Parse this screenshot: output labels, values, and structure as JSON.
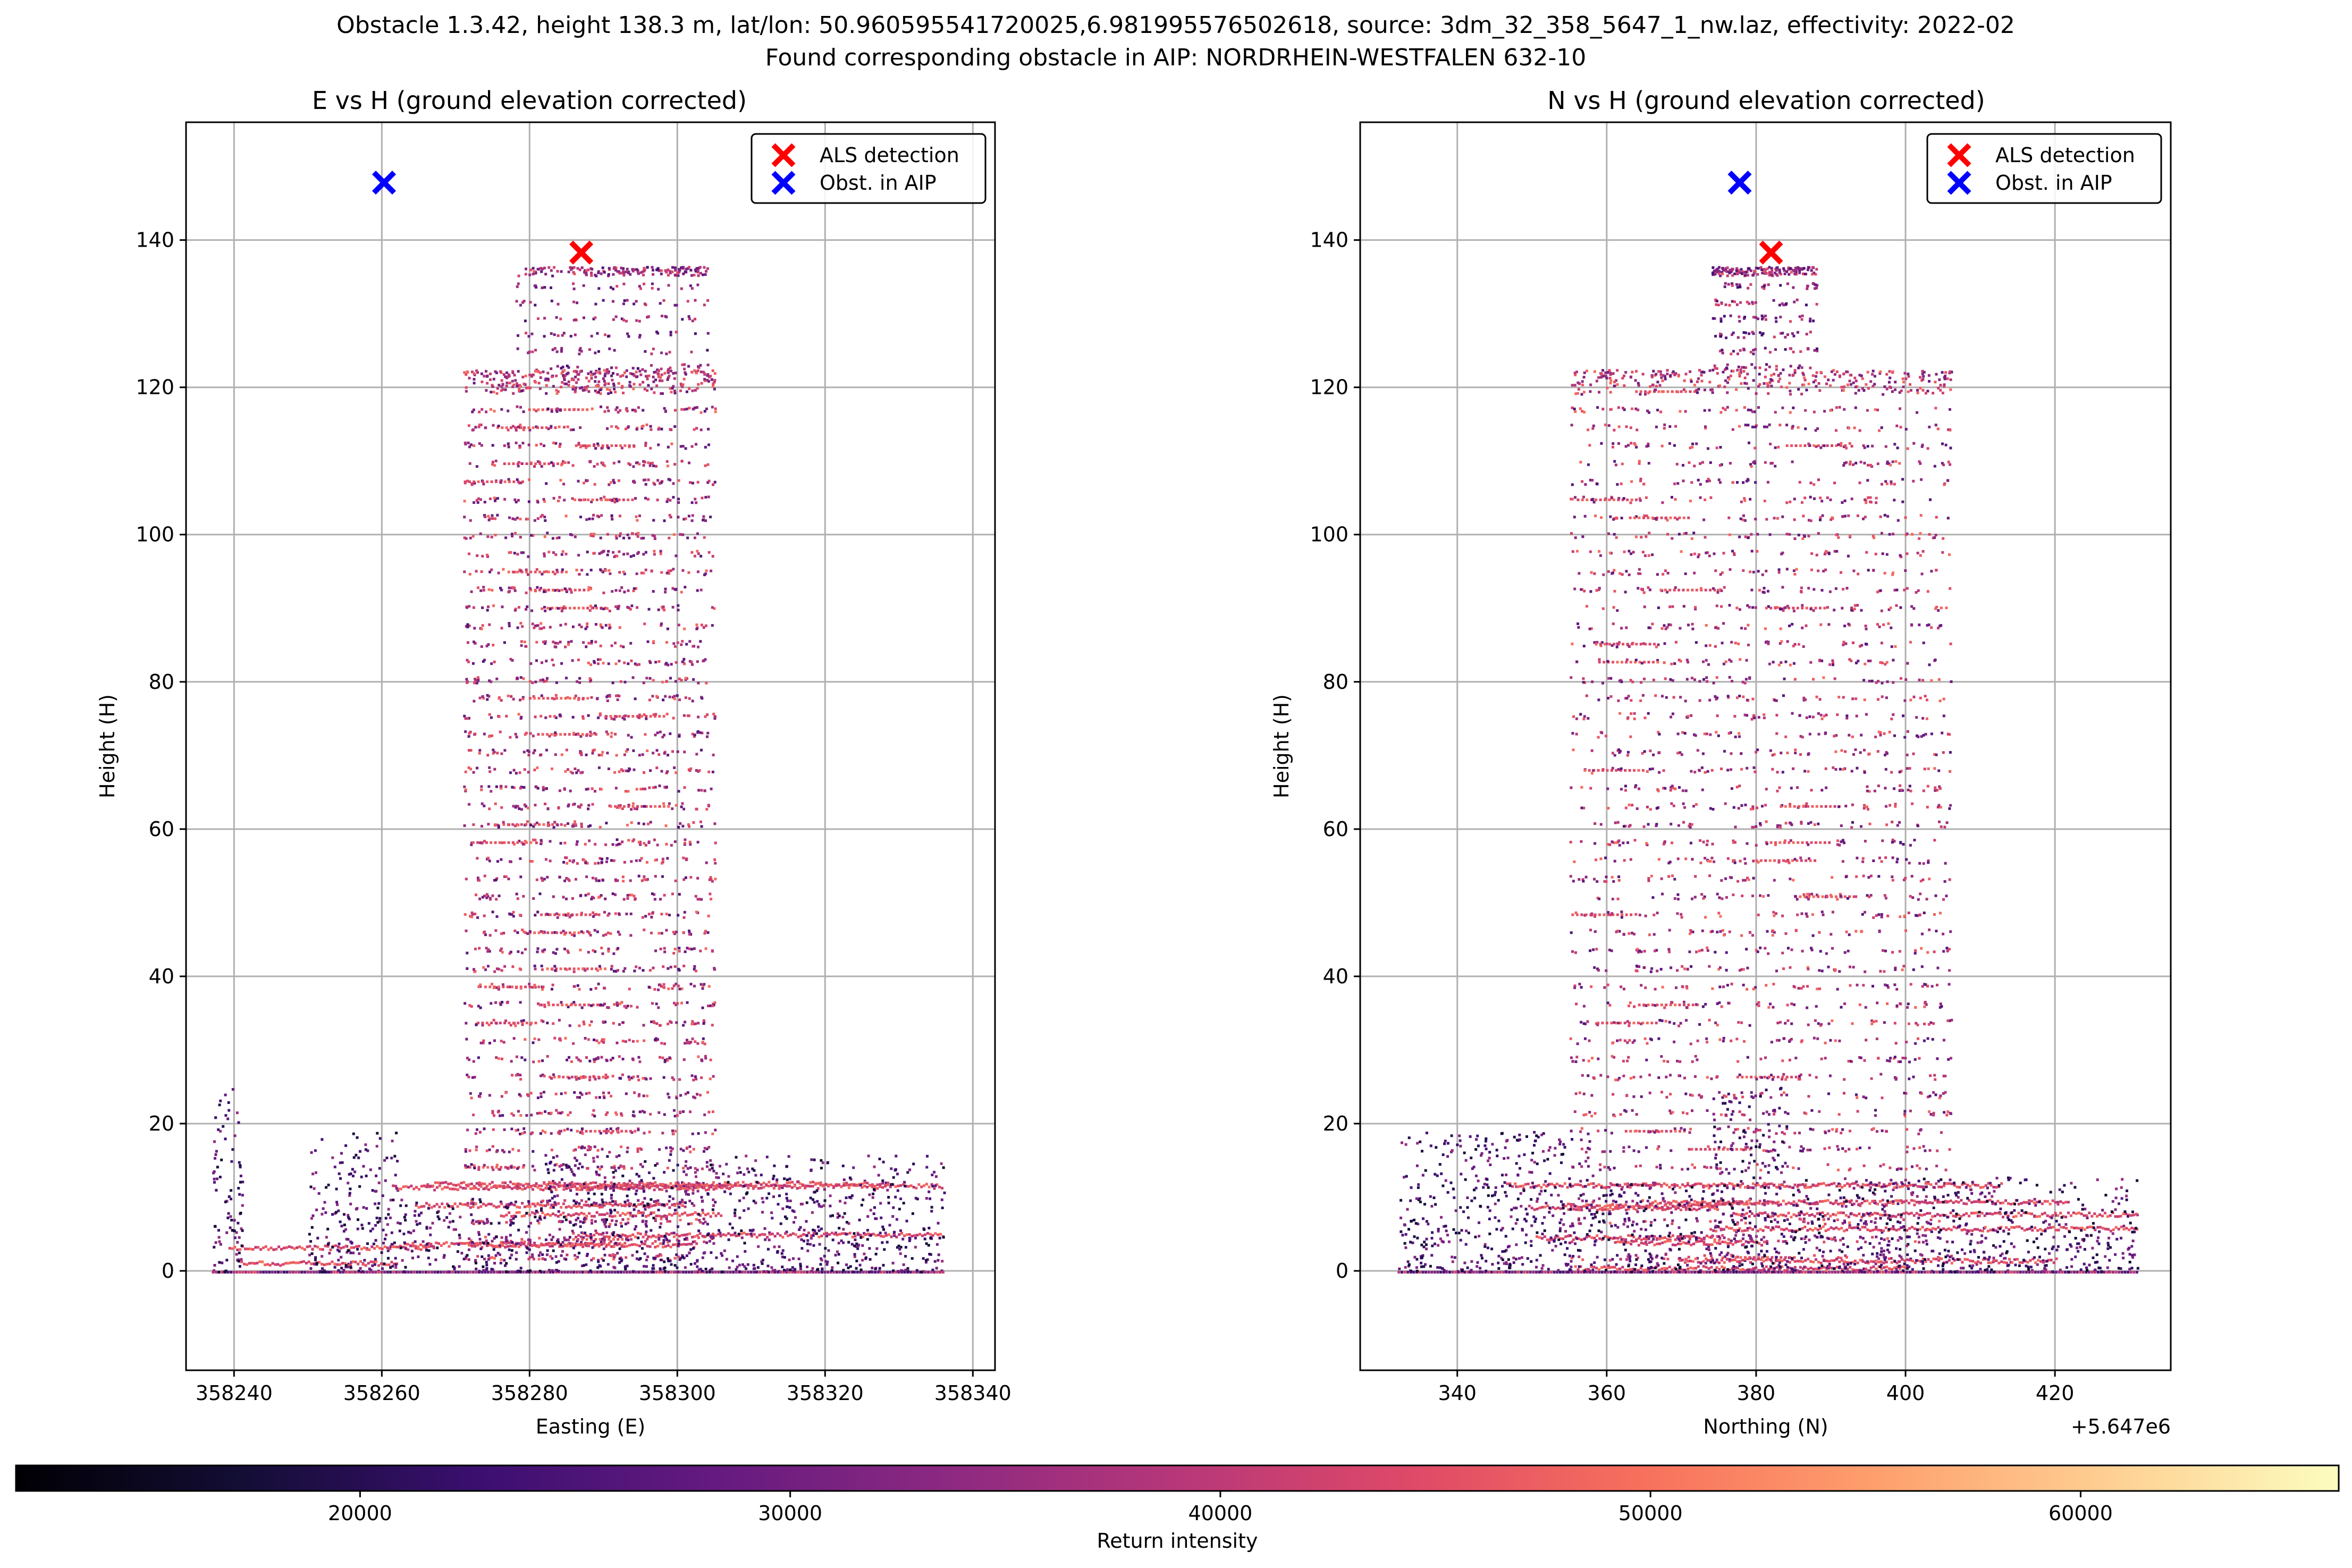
{
  "figure": {
    "title_line1": "Obstacle 1.3.42, height 138.3 m, lat/lon: 50.960595541720025,6.981995576502618, source: 3dm_32_358_5647_1_nw.laz, effectivity: 2022-02",
    "title_line2": "Found corresponding obstacle in AIP: NORDRHEIN-WESTFALEN 632-10"
  },
  "colorbar": {
    "label": "Return intensity",
    "min": 12000,
    "max": 66000,
    "ticks": [
      20000,
      30000,
      40000,
      50000,
      60000
    ],
    "tick_labels": [
      "20000",
      "30000",
      "40000",
      "50000",
      "60000"
    ],
    "colormap": "magma"
  },
  "chart_data": [
    {
      "type": "scatter",
      "title": "E vs H (ground elevation corrected)",
      "xlabel": "Easting (E)",
      "ylabel": "Height (H)",
      "xlim": [
        358233.5,
        358343
      ],
      "ylim": [
        -13.5,
        156
      ],
      "xticks": [
        358240,
        358260,
        358280,
        358300,
        358320,
        358340
      ],
      "xtick_labels": [
        "358240",
        "358260",
        "358280",
        "358300",
        "358320",
        "358340"
      ],
      "yticks": [
        0,
        20,
        40,
        60,
        80,
        100,
        120,
        140
      ],
      "ytick_labels": [
        "0",
        "20",
        "40",
        "60",
        "80",
        "100",
        "120",
        "140"
      ],
      "x_offset_label": "",
      "grid": true,
      "legend_position": "top-right",
      "structure": {
        "tower_x": [
          358271,
          358305
        ],
        "tower_top": 122.5,
        "upper_x": [
          358278,
          358304
        ],
        "upper_top": 136.5,
        "ground": [
          {
            "x": [
              358237,
              358241
            ],
            "top": 25
          },
          {
            "x": [
              358250,
              358262
            ],
            "top": 19
          },
          {
            "x": [
              358262,
              358282
            ],
            "top": 10
          },
          {
            "x": [
              358282,
              358336
            ],
            "top": 16
          }
        ],
        "ground_extent": [
          358237,
          358336
        ]
      },
      "series": [
        {
          "name": "ALS detection",
          "color": "#ff0000",
          "marker": "x",
          "x": [
            358287
          ],
          "y": [
            138.3
          ]
        },
        {
          "name": "Obst. in AIP",
          "color": "#0000ff",
          "marker": "x",
          "x": [
            358260.3
          ],
          "y": [
            147.8
          ]
        }
      ]
    },
    {
      "type": "scatter",
      "title": "N vs H (ground elevation corrected)",
      "xlabel": "Northing (N)",
      "ylabel": "Height (H)",
      "xlim": [
        327,
        435.5
      ],
      "ylim": [
        -13.5,
        156
      ],
      "xticks": [
        340,
        360,
        380,
        400,
        420
      ],
      "xtick_labels": [
        "340",
        "360",
        "380",
        "400",
        "420"
      ],
      "yticks": [
        0,
        20,
        40,
        60,
        80,
        100,
        120,
        140
      ],
      "ytick_labels": [
        "0",
        "20",
        "40",
        "60",
        "80",
        "100",
        "120",
        "140"
      ],
      "x_offset_label": "+5.647e6",
      "grid": true,
      "legend_position": "top-right",
      "structure": {
        "tower_x": [
          355,
          406
        ],
        "tower_top": 122.5,
        "upper_x": [
          374,
          388
        ],
        "upper_top": 136.5,
        "ground": [
          {
            "x": [
              332,
              358
            ],
            "top": 19
          },
          {
            "x": [
              358,
              374
            ],
            "top": 12
          },
          {
            "x": [
              374,
              384
            ],
            "top": 25
          },
          {
            "x": [
              384,
              431
            ],
            "top": 13
          }
        ],
        "ground_extent": [
          332,
          431
        ]
      },
      "series": [
        {
          "name": "ALS detection",
          "color": "#ff0000",
          "marker": "x",
          "x": [
            382
          ],
          "y": [
            138.3
          ]
        },
        {
          "name": "Obst. in AIP",
          "color": "#0000ff",
          "marker": "x",
          "x": [
            377.8
          ],
          "y": [
            147.8
          ]
        }
      ]
    }
  ]
}
